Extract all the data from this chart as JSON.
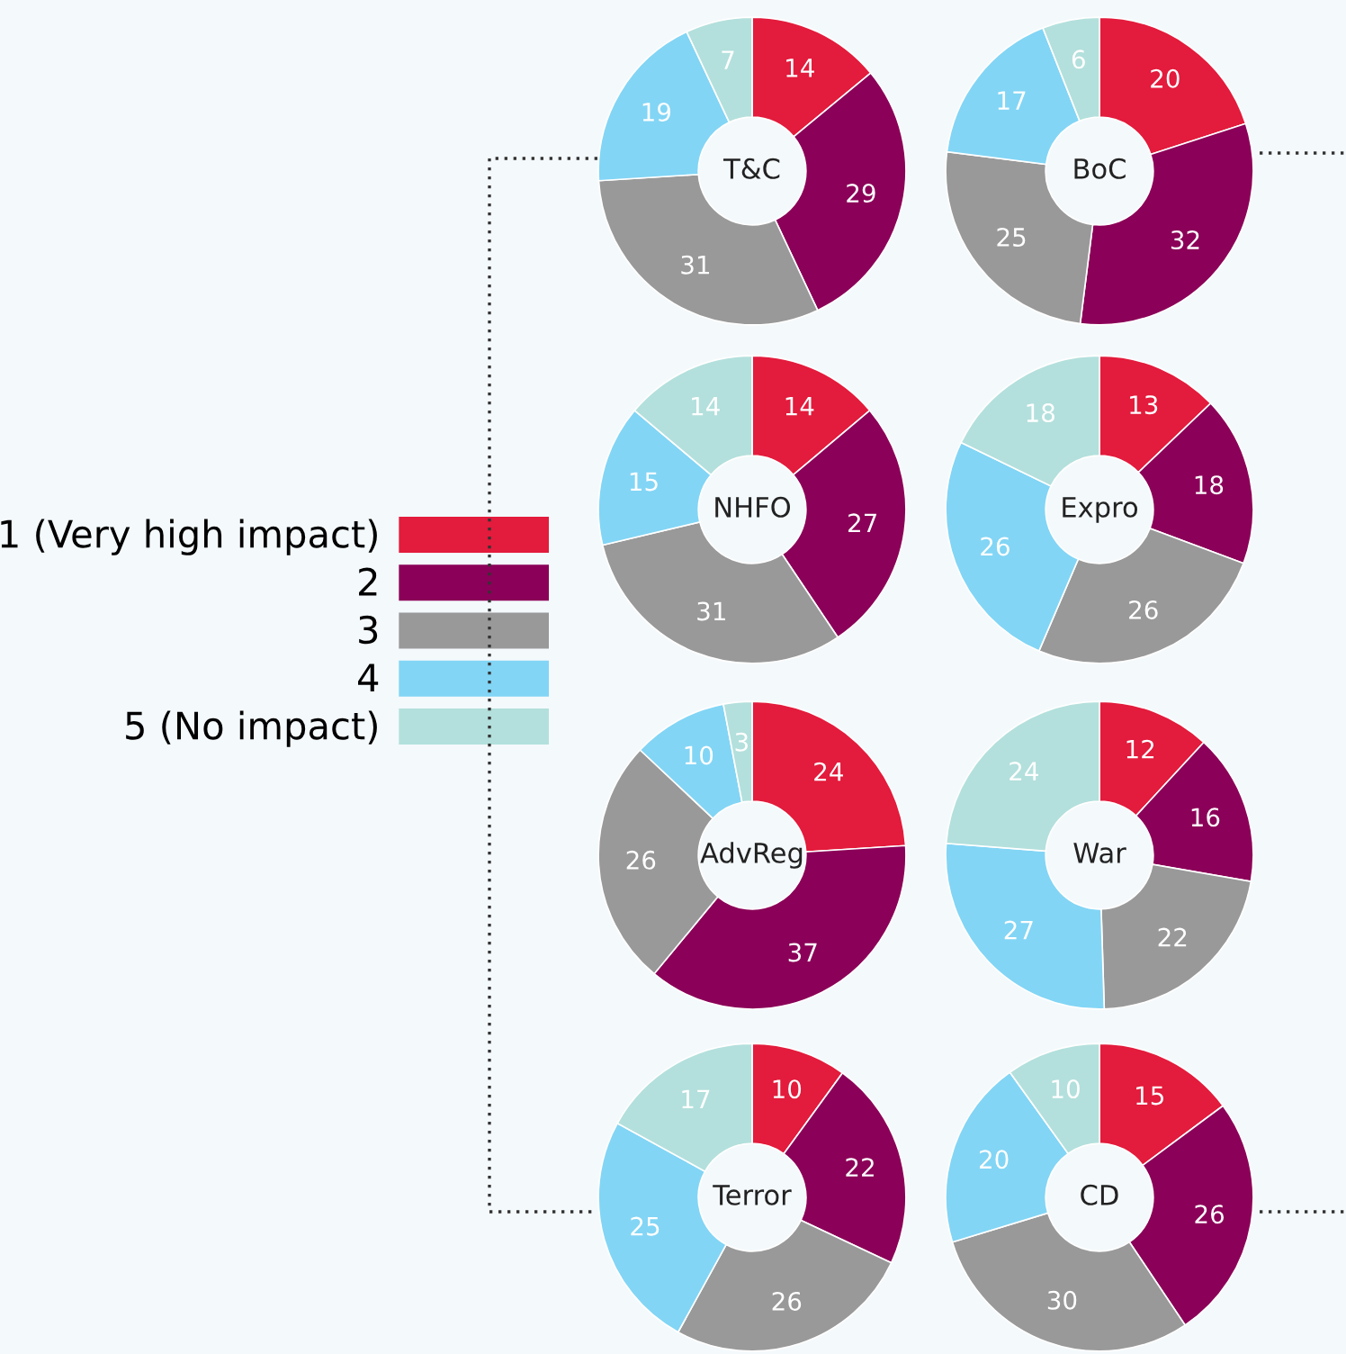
{
  "chart_data": [
    {
      "type": "donut",
      "title": "T&C",
      "categories": [
        "1 (Very high impact)",
        "2",
        "3",
        "4",
        "5 (No impact)"
      ],
      "values": [
        14,
        29,
        31,
        19,
        7
      ],
      "colors": [
        "#e31b3c",
        "#8b0058",
        "#999999",
        "#82d5f5",
        "#b3e0dc"
      ],
      "data_labels": true,
      "legend": "left"
    },
    {
      "type": "donut",
      "title": "BoC",
      "values": [
        20,
        32,
        25,
        17,
        6
      ],
      "colors": [
        "#e31b3c",
        "#8b0058",
        "#999999",
        "#82d5f5",
        "#b3e0dc"
      ],
      "data_labels": true
    },
    {
      "type": "donut",
      "title": "NHFO",
      "values": [
        14,
        27,
        31,
        15,
        14
      ],
      "colors": [
        "#e31b3c",
        "#8b0058",
        "#999999",
        "#82d5f5",
        "#b3e0dc"
      ],
      "data_labels": true
    },
    {
      "type": "donut",
      "title": "Expro",
      "values": [
        13,
        18,
        26,
        26,
        18
      ],
      "colors": [
        "#e31b3c",
        "#8b0058",
        "#999999",
        "#82d5f5",
        "#b3e0dc"
      ],
      "data_labels": true
    },
    {
      "type": "donut",
      "title": "AdvReg",
      "values": [
        24,
        37,
        26,
        10,
        3
      ],
      "colors": [
        "#e31b3c",
        "#8b0058",
        "#999999",
        "#82d5f5",
        "#b3e0dc"
      ],
      "data_labels": true
    },
    {
      "type": "donut",
      "title": "War",
      "values": [
        12,
        16,
        22,
        27,
        24
      ],
      "colors": [
        "#e31b3c",
        "#8b0058",
        "#999999",
        "#82d5f5",
        "#b3e0dc"
      ],
      "data_labels": true
    },
    {
      "type": "donut",
      "title": "Terror",
      "values": [
        10,
        22,
        26,
        25,
        17
      ],
      "colors": [
        "#e31b3c",
        "#8b0058",
        "#999999",
        "#82d5f5",
        "#b3e0dc"
      ],
      "data_labels": true
    },
    {
      "type": "donut",
      "title": "CD",
      "values": [
        15,
        26,
        30,
        20,
        10
      ],
      "colors": [
        "#e31b3c",
        "#8b0058",
        "#999999",
        "#82d5f5",
        "#b3e0dc"
      ],
      "data_labels": true
    }
  ]
}
